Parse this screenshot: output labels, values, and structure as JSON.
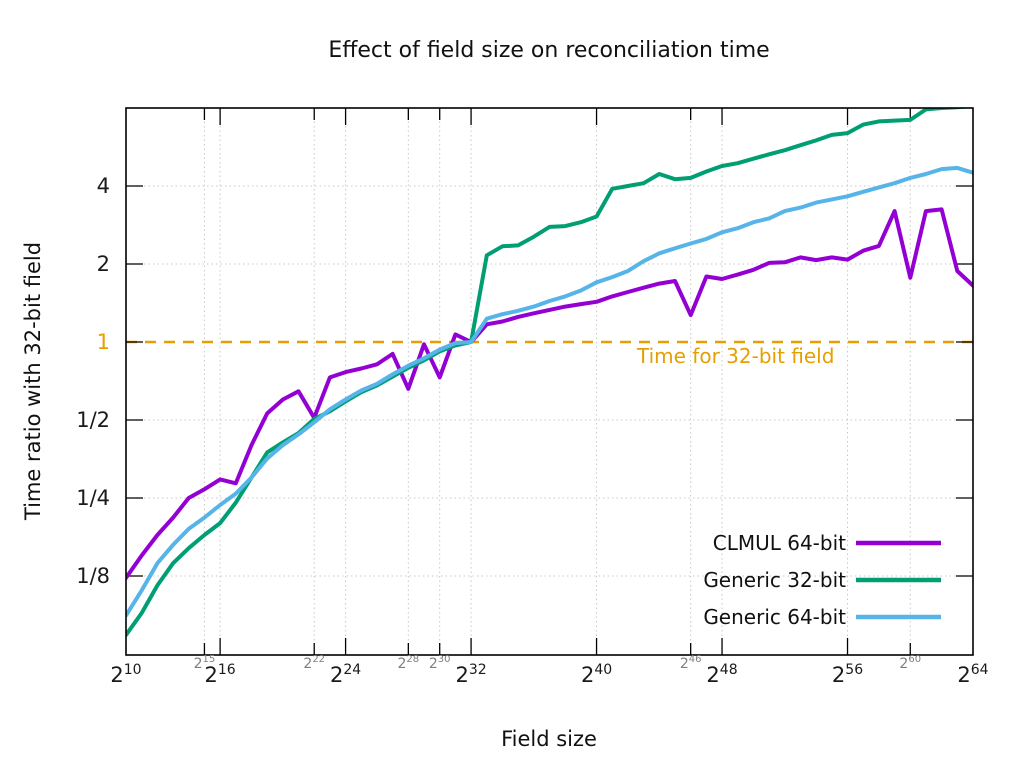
{
  "title": "Effect of field size on reconciliation time",
  "axes": {
    "x_label": "Field size",
    "y_label": "Time ratio with 32-bit field",
    "x_tick_base": "2",
    "x_ticks": [
      {
        "e": 10,
        "exp": "10",
        "major": true
      },
      {
        "e": 15,
        "exp": "15",
        "major": false
      },
      {
        "e": 16,
        "exp": "16",
        "major": true
      },
      {
        "e": 22,
        "exp": "22",
        "major": false
      },
      {
        "e": 24,
        "exp": "24",
        "major": true
      },
      {
        "e": 28,
        "exp": "28",
        "major": false
      },
      {
        "e": 30,
        "exp": "30",
        "major": false
      },
      {
        "e": 32,
        "exp": "32",
        "major": true
      },
      {
        "e": 40,
        "exp": "40",
        "major": true
      },
      {
        "e": 46,
        "exp": "46",
        "major": false
      },
      {
        "e": 48,
        "exp": "48",
        "major": true
      },
      {
        "e": 56,
        "exp": "56",
        "major": true
      },
      {
        "e": 60,
        "exp": "60",
        "major": false
      },
      {
        "e": 64,
        "exp": "64",
        "major": true
      }
    ],
    "y_ticks": [
      {
        "label": "4",
        "v": 4,
        "accent": false
      },
      {
        "label": "2",
        "v": 2,
        "accent": false
      },
      {
        "label": "1",
        "v": 1,
        "accent": true
      },
      {
        "label": "1/2",
        "v": 0.5,
        "accent": false
      },
      {
        "label": "1/4",
        "v": 0.25,
        "accent": false
      },
      {
        "label": "1/8",
        "v": 0.125,
        "accent": false
      }
    ]
  },
  "annotation": {
    "text": "Time for 32-bit field",
    "color": "#e69f00"
  },
  "legend": [
    {
      "label": "CLMUL 64-bit",
      "color": "#9400d3"
    },
    {
      "label": "Generic 32-bit",
      "color": "#009e73"
    },
    {
      "label": "Generic 64-bit",
      "color": "#56b4e9"
    }
  ],
  "colors": {
    "grid": "#c8c8c8",
    "border": "#000000",
    "minor_tick_label": "#7f7f7f",
    "reference": "#e69f00"
  },
  "chart_data": {
    "type": "line",
    "title": "Effect of field size on reconciliation time",
    "xlabel": "Field size",
    "ylabel": "Time ratio with 32-bit field",
    "x_scale": "field size = 2^e, axis linear in exponent e",
    "y_scale": "log2",
    "e_start": 10,
    "e_end": 64,
    "e_step": 1,
    "ylim": [
      0.0625,
      8
    ],
    "grid": true,
    "legend_position": "bottom-right-inside",
    "reference_line": {
      "y": 1,
      "style": "dashed",
      "color": "#e69f00",
      "label": "Time for 32-bit field"
    },
    "series": [
      {
        "name": "CLMUL 64-bit",
        "color": "#9400d3",
        "values": [
          0.123,
          0.15,
          0.18,
          0.21,
          0.25,
          0.27,
          0.295,
          0.285,
          0.4,
          0.53,
          0.6,
          0.645,
          0.51,
          0.73,
          0.765,
          0.79,
          0.82,
          0.9,
          0.66,
          0.98,
          0.73,
          1.07,
          1.0,
          1.17,
          1.2,
          1.25,
          1.29,
          1.33,
          1.37,
          1.4,
          1.43,
          1.5,
          1.56,
          1.62,
          1.68,
          1.72,
          1.27,
          1.79,
          1.75,
          1.82,
          1.9,
          2.02,
          2.03,
          2.12,
          2.07,
          2.12,
          2.08,
          2.25,
          2.35,
          3.2,
          1.77,
          3.2,
          3.25,
          1.88,
          1.65
        ]
      },
      {
        "name": "Generic 32-bit",
        "color": "#009e73",
        "values": [
          0.074,
          0.09,
          0.115,
          0.14,
          0.16,
          0.18,
          0.2,
          0.24,
          0.3,
          0.375,
          0.41,
          0.445,
          0.505,
          0.54,
          0.59,
          0.64,
          0.68,
          0.735,
          0.795,
          0.85,
          0.92,
          0.97,
          1.0,
          2.16,
          2.34,
          2.36,
          2.55,
          2.78,
          2.8,
          2.9,
          3.05,
          3.9,
          4.0,
          4.1,
          4.45,
          4.25,
          4.3,
          4.55,
          4.78,
          4.9,
          5.1,
          5.3,
          5.5,
          5.75,
          6.0,
          6.3,
          6.4,
          6.9,
          7.1,
          7.15,
          7.2,
          7.9,
          8.0,
          8.05,
          8.15
        ]
      },
      {
        "name": "Generic 64-bit",
        "color": "#56b4e9",
        "values": [
          0.088,
          0.11,
          0.14,
          0.165,
          0.19,
          0.21,
          0.235,
          0.26,
          0.3,
          0.355,
          0.4,
          0.44,
          0.49,
          0.55,
          0.6,
          0.65,
          0.69,
          0.75,
          0.81,
          0.865,
          0.935,
          0.99,
          1.0,
          1.23,
          1.28,
          1.32,
          1.37,
          1.44,
          1.5,
          1.58,
          1.7,
          1.78,
          1.88,
          2.05,
          2.2,
          2.3,
          2.4,
          2.5,
          2.65,
          2.75,
          2.9,
          3.0,
          3.2,
          3.3,
          3.45,
          3.55,
          3.65,
          3.8,
          3.95,
          4.1,
          4.3,
          4.45,
          4.65,
          4.7,
          4.5
        ]
      }
    ]
  }
}
